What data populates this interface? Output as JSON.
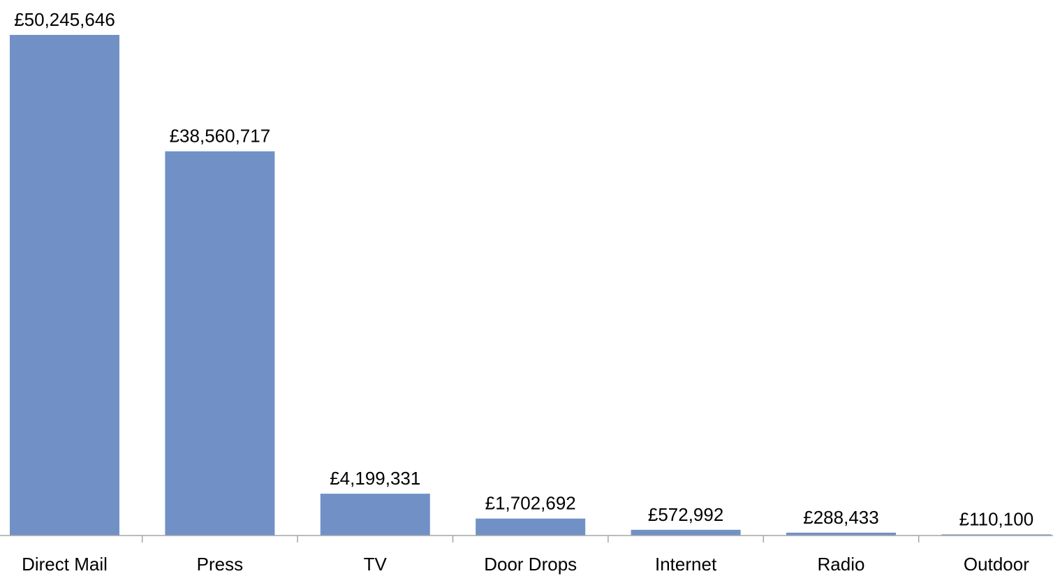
{
  "chart_data": {
    "type": "bar",
    "title": "",
    "xlabel": "",
    "ylabel": "",
    "categories": [
      "Direct Mail",
      "Press",
      "TV",
      "Door Drops",
      "Internet",
      "Radio",
      "Outdoor"
    ],
    "values": [
      50245646,
      38560717,
      4199331,
      1702692,
      572992,
      288433,
      110100
    ],
    "data_labels": [
      "£50,245,646",
      "£38,560,717",
      "£4,199,331",
      "£1,702,692",
      "£572,992",
      "£288,433",
      "£110,100"
    ],
    "ylim": [
      0,
      50245646
    ],
    "grid": false,
    "legend": "none",
    "bar_color": "#7191c6",
    "axis_color": "#a6a6a6"
  }
}
